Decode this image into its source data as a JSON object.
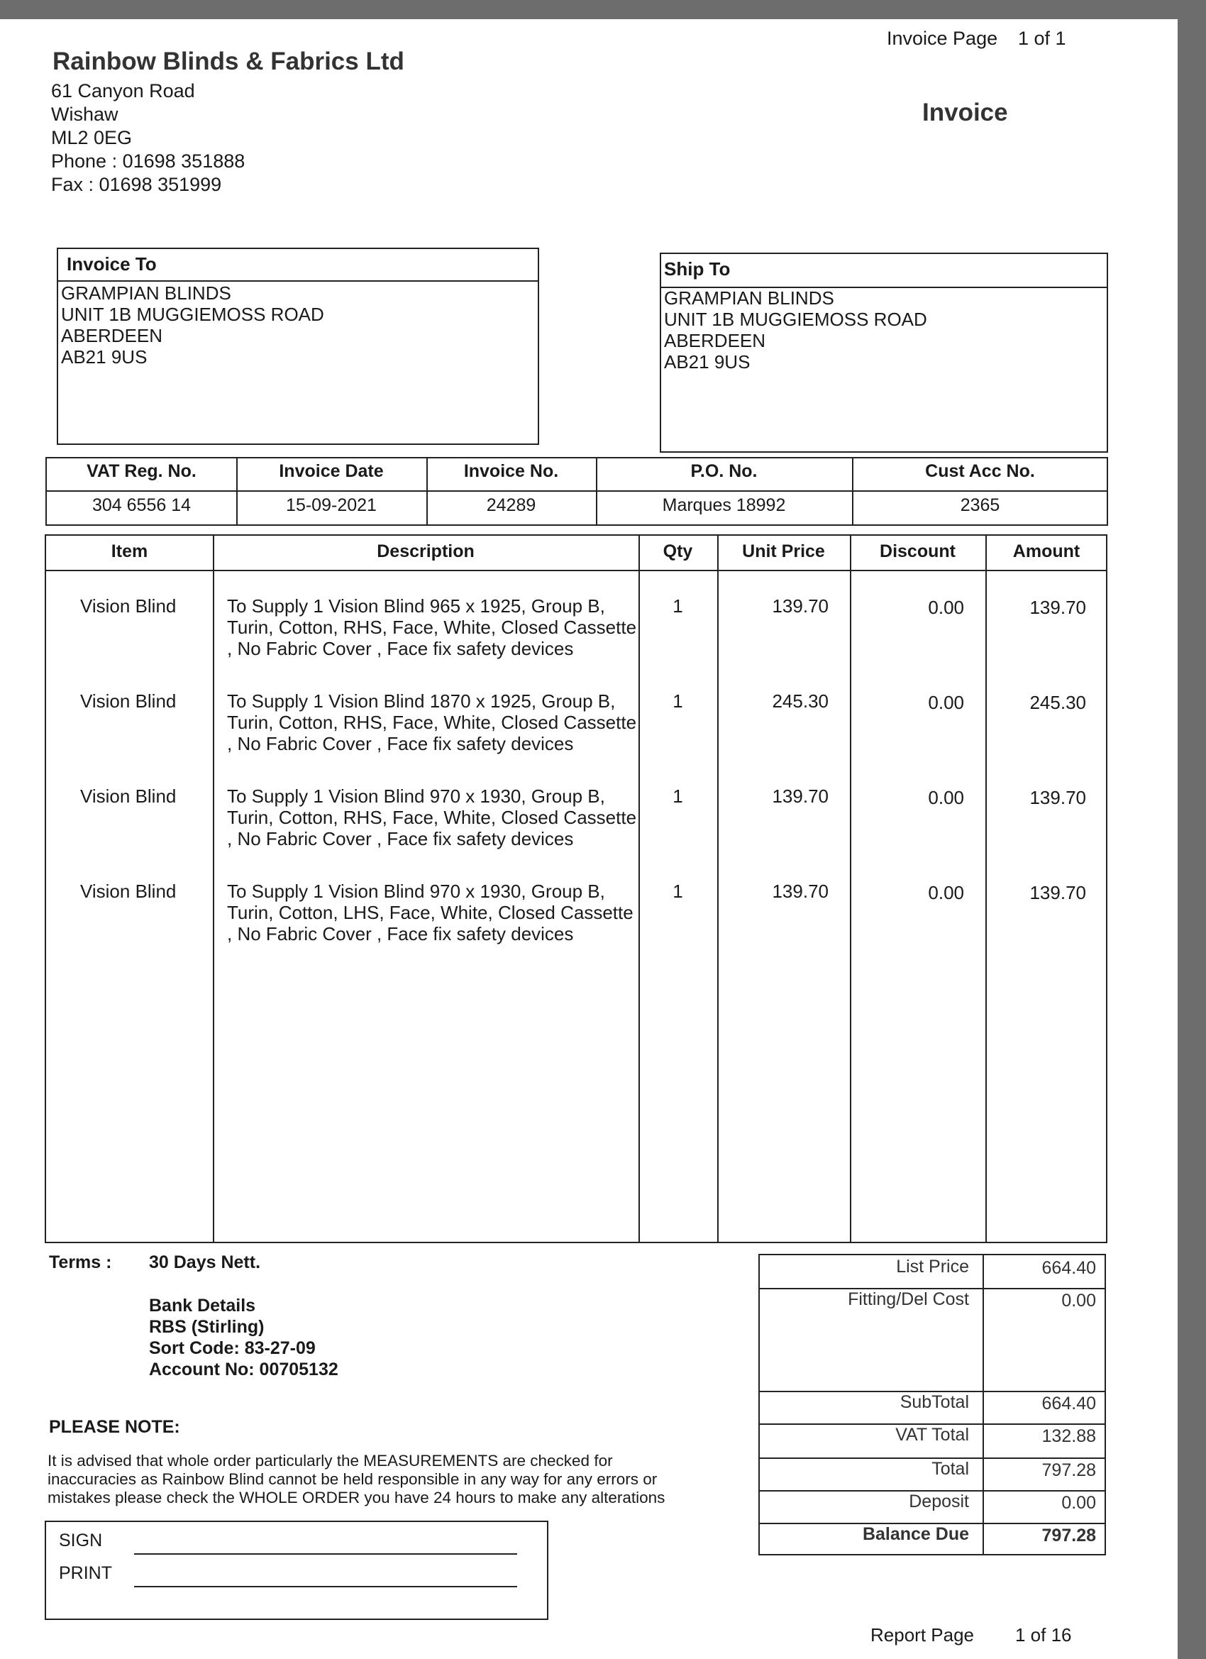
{
  "header": {
    "page_label": "Invoice Page",
    "page_value": "1 of 1",
    "doc_title": "Invoice"
  },
  "company": {
    "name": "Rainbow Blinds & Fabrics Ltd",
    "address": [
      "61 Canyon Road",
      "Wishaw",
      "ML2 0EG",
      "Phone : 01698 351888",
      "Fax : 01698 351999"
    ]
  },
  "invoice_to": {
    "title": "Invoice To",
    "lines": [
      "GRAMPIAN BLINDS",
      "UNIT 1B MUGGIEMOSS ROAD",
      "ABERDEEN",
      "AB21 9US"
    ]
  },
  "ship_to": {
    "title": "Ship To",
    "lines": [
      "GRAMPIAN BLINDS",
      "UNIT 1B MUGGIEMOSS ROAD",
      "ABERDEEN",
      "AB21 9US"
    ]
  },
  "info": {
    "headers": [
      "VAT Reg. No.",
      "Invoice Date",
      "Invoice No.",
      "P.O. No.",
      "Cust Acc No."
    ],
    "values": [
      "304 6556 14",
      "15-09-2021",
      "24289",
      "Marques 18992",
      "2365"
    ]
  },
  "items": {
    "headers": [
      "Item",
      "Description",
      "Qty",
      "Unit Price",
      "Discount",
      "Amount"
    ],
    "rows": [
      {
        "item": "Vision Blind",
        "description": "To Supply 1 Vision Blind  965 x 1925, Group B, Turin, Cotton, RHS, Face, White, Closed Cassette , No Fabric Cover , Face fix safety devices",
        "qty": "1",
        "unit_price": "139.70",
        "discount": "0.00",
        "amount": "139.70"
      },
      {
        "item": "Vision Blind",
        "description": "To Supply 1 Vision Blind  1870 x 1925, Group B, Turin, Cotton, RHS, Face, White, Closed Cassette , No Fabric Cover , Face fix safety devices",
        "qty": "1",
        "unit_price": "245.30",
        "discount": "0.00",
        "amount": "245.30"
      },
      {
        "item": "Vision Blind",
        "description": "To Supply 1 Vision Blind  970 x 1930, Group B, Turin, Cotton, RHS, Face, White, Closed Cassette , No Fabric Cover , Face fix safety devices",
        "qty": "1",
        "unit_price": "139.70",
        "discount": "0.00",
        "amount": "139.70"
      },
      {
        "item": "Vision Blind",
        "description": "To Supply 1 Vision Blind  970 x 1930, Group B, Turin, Cotton, LHS, Face, White, Closed Cassette , No Fabric Cover , Face fix safety devices",
        "qty": "1",
        "unit_price": "139.70",
        "discount": "0.00",
        "amount": "139.70"
      }
    ]
  },
  "terms": {
    "label": "Terms :",
    "value": "30 Days Nett.",
    "bank": [
      "Bank Details",
      "RBS (Stirling)",
      "Sort Code: 83-27-09",
      "Account No: 00705132"
    ]
  },
  "note": {
    "title": "PLEASE NOTE:",
    "lines": [
      "It is advised that whole order particularly the MEASUREMENTS are checked for",
      "inaccuracies as Rainbow Blind cannot be held responsible in any way for any errors or",
      "mistakes please check the WHOLE ORDER you have 24 hours to make any alterations"
    ]
  },
  "sign": {
    "sign_label": "SIGN",
    "print_label": "PRINT"
  },
  "totals": [
    {
      "label": "List Price",
      "value": "664.40"
    },
    {
      "label": "Fitting/Del Cost",
      "value": "0.00"
    },
    {
      "label": "SubTotal",
      "value": "664.40"
    },
    {
      "label": "VAT Total",
      "value": "132.88"
    },
    {
      "label": "Total",
      "value": "797.28"
    },
    {
      "label": "Deposit",
      "value": "0.00"
    },
    {
      "label": "Balance Due",
      "value": "797.28"
    }
  ],
  "footer": {
    "label": "Report Page",
    "value": "1 of 16"
  }
}
